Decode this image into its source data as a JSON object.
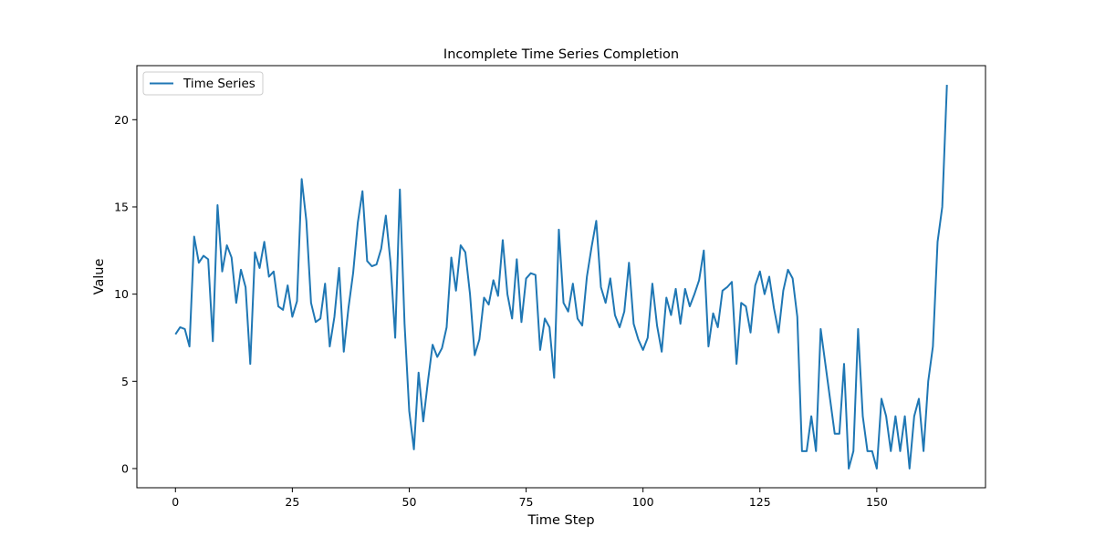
{
  "chart_data": {
    "type": "line",
    "title": "Incomplete Time Series Completion",
    "xlabel": "Time Step",
    "ylabel": "Value",
    "xlim": [
      -8.25,
      173.25
    ],
    "ylim": [
      -1.1,
      23.1
    ],
    "xticks": [
      0,
      25,
      50,
      75,
      100,
      125,
      150
    ],
    "yticks": [
      0,
      5,
      10,
      15,
      20
    ],
    "grid": false,
    "legend": {
      "position": "top-left",
      "entries": [
        "Time Series"
      ]
    },
    "series": [
      {
        "name": "Time Series",
        "color": "#1f77b4",
        "x": [
          0,
          1,
          2,
          3,
          4,
          5,
          6,
          7,
          8,
          9,
          10,
          11,
          12,
          13,
          14,
          15,
          16,
          17,
          18,
          19,
          20,
          21,
          22,
          23,
          24,
          25,
          26,
          27,
          28,
          29,
          30,
          31,
          32,
          33,
          34,
          35,
          36,
          37,
          38,
          39,
          40,
          41,
          42,
          43,
          44,
          45,
          46,
          47,
          48,
          49,
          50,
          51,
          52,
          53,
          54,
          55,
          56,
          57,
          58,
          59,
          60,
          61,
          62,
          63,
          64,
          65,
          66,
          67,
          68,
          69,
          70,
          71,
          72,
          73,
          74,
          75,
          76,
          77,
          78,
          79,
          80,
          81,
          82,
          83,
          84,
          85,
          86,
          87,
          88,
          89,
          90,
          91,
          92,
          93,
          94,
          95,
          96,
          97,
          98,
          99,
          100,
          101,
          102,
          103,
          104,
          105,
          106,
          107,
          108,
          109,
          110,
          111,
          112,
          113,
          114,
          115,
          116,
          117,
          118,
          119,
          120,
          121,
          122,
          123,
          124,
          125,
          126,
          127,
          128,
          129,
          130,
          131,
          132,
          133,
          134,
          135,
          136,
          137,
          138,
          139,
          140,
          141,
          142,
          143,
          144,
          145,
          146,
          147,
          148,
          149,
          150,
          151,
          152,
          153,
          154,
          155,
          156,
          157,
          158,
          159,
          160,
          161,
          162,
          163,
          164,
          165
        ],
        "y": [
          7.7,
          8.1,
          8.0,
          7.0,
          13.3,
          11.8,
          12.2,
          12.0,
          7.3,
          15.1,
          11.3,
          12.8,
          12.1,
          9.5,
          11.4,
          10.4,
          6.0,
          12.4,
          11.5,
          13.0,
          11.0,
          11.3,
          9.3,
          9.1,
          10.5,
          8.7,
          9.6,
          16.6,
          14.2,
          9.5,
          8.4,
          8.6,
          10.6,
          7.0,
          8.7,
          11.5,
          6.7,
          9.2,
          11.2,
          14.1,
          15.9,
          11.9,
          11.6,
          11.7,
          12.6,
          14.5,
          11.8,
          7.5,
          16.0,
          8.3,
          3.3,
          1.1,
          5.5,
          2.7,
          5.0,
          7.1,
          6.4,
          6.9,
          8.1,
          12.1,
          10.2,
          12.8,
          12.4,
          10.0,
          6.5,
          7.4,
          9.8,
          9.4,
          10.8,
          9.9,
          13.1,
          10.0,
          8.6,
          12.0,
          8.4,
          10.9,
          11.2,
          11.1,
          6.8,
          8.6,
          8.1,
          5.2,
          13.7,
          9.5,
          9.0,
          10.6,
          8.6,
          8.2,
          11.0,
          12.7,
          14.2,
          10.4,
          9.5,
          10.9,
          8.8,
          8.1,
          9.0,
          11.8,
          8.3,
          7.4,
          6.8,
          7.5,
          10.6,
          8.2,
          6.7,
          9.8,
          8.8,
          10.3,
          8.3,
          10.3,
          9.3,
          10.0,
          10.8,
          12.5,
          7.0,
          8.9,
          8.1,
          10.2,
          10.4,
          10.7,
          6.0,
          9.5,
          9.3,
          7.8,
          10.5,
          11.3,
          10.0,
          11.0,
          9.2,
          7.8,
          10.2,
          11.4,
          10.9,
          8.7,
          1.0,
          1.0,
          3.0,
          1.0,
          8.0,
          6.0,
          4.0,
          2.0,
          2.0,
          6.0,
          0.0,
          1.0,
          8.0,
          3.0,
          1.0,
          1.0,
          0.0,
          4.0,
          3.0,
          1.0,
          3.0,
          1.0,
          3.0,
          0.0,
          3.0,
          4.0,
          1.0,
          5.0,
          7.0,
          13.0,
          15.0,
          22.0
        ]
      }
    ]
  }
}
